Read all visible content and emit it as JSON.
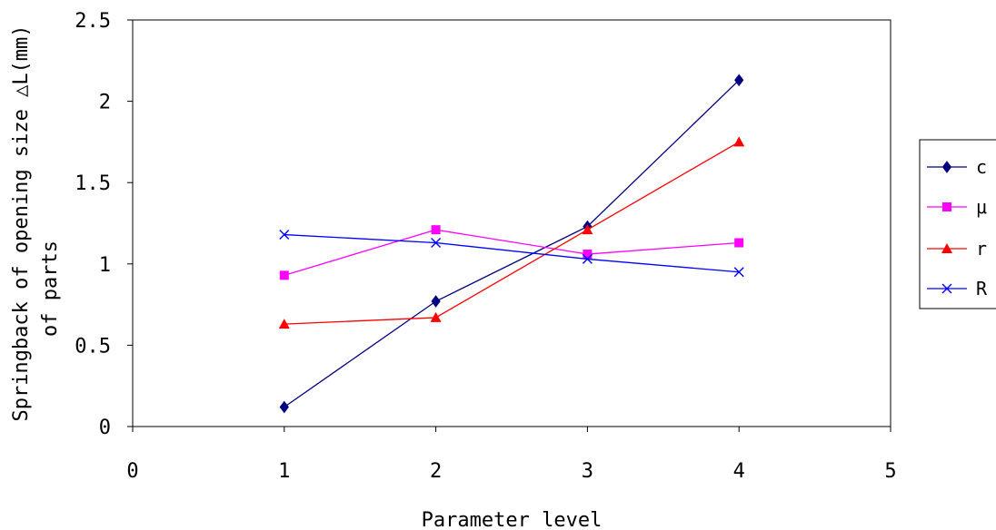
{
  "chart_data": {
    "type": "line",
    "title": "",
    "xlabel": "Parameter level",
    "ylabel_lines": [
      "Springback of opening size  △L(mm)",
      "of parts"
    ],
    "xlim": [
      0,
      5
    ],
    "ylim": [
      0,
      2.5
    ],
    "x_ticks": [
      "0",
      "1",
      "2",
      "3",
      "4",
      "5"
    ],
    "y_ticks": [
      "0",
      "0.5",
      "1",
      "1.5",
      "2",
      "2.5"
    ],
    "grid": false,
    "legend_position": "right",
    "x": [
      1,
      2,
      3,
      4
    ],
    "series": [
      {
        "name": "c",
        "values": [
          0.12,
          0.77,
          1.23,
          2.13
        ],
        "color": "#000080",
        "marker": "diamond"
      },
      {
        "name": "μ",
        "values": [
          0.93,
          1.21,
          1.06,
          1.13
        ],
        "color": "#ff00ff",
        "marker": "square"
      },
      {
        "name": "r",
        "values": [
          0.63,
          0.67,
          1.21,
          1.75
        ],
        "color": "#ff0000",
        "marker": "triangle"
      },
      {
        "name": "R",
        "values": [
          1.18,
          1.13,
          1.03,
          0.95
        ],
        "color": "#0000ff",
        "marker": "x"
      }
    ]
  }
}
